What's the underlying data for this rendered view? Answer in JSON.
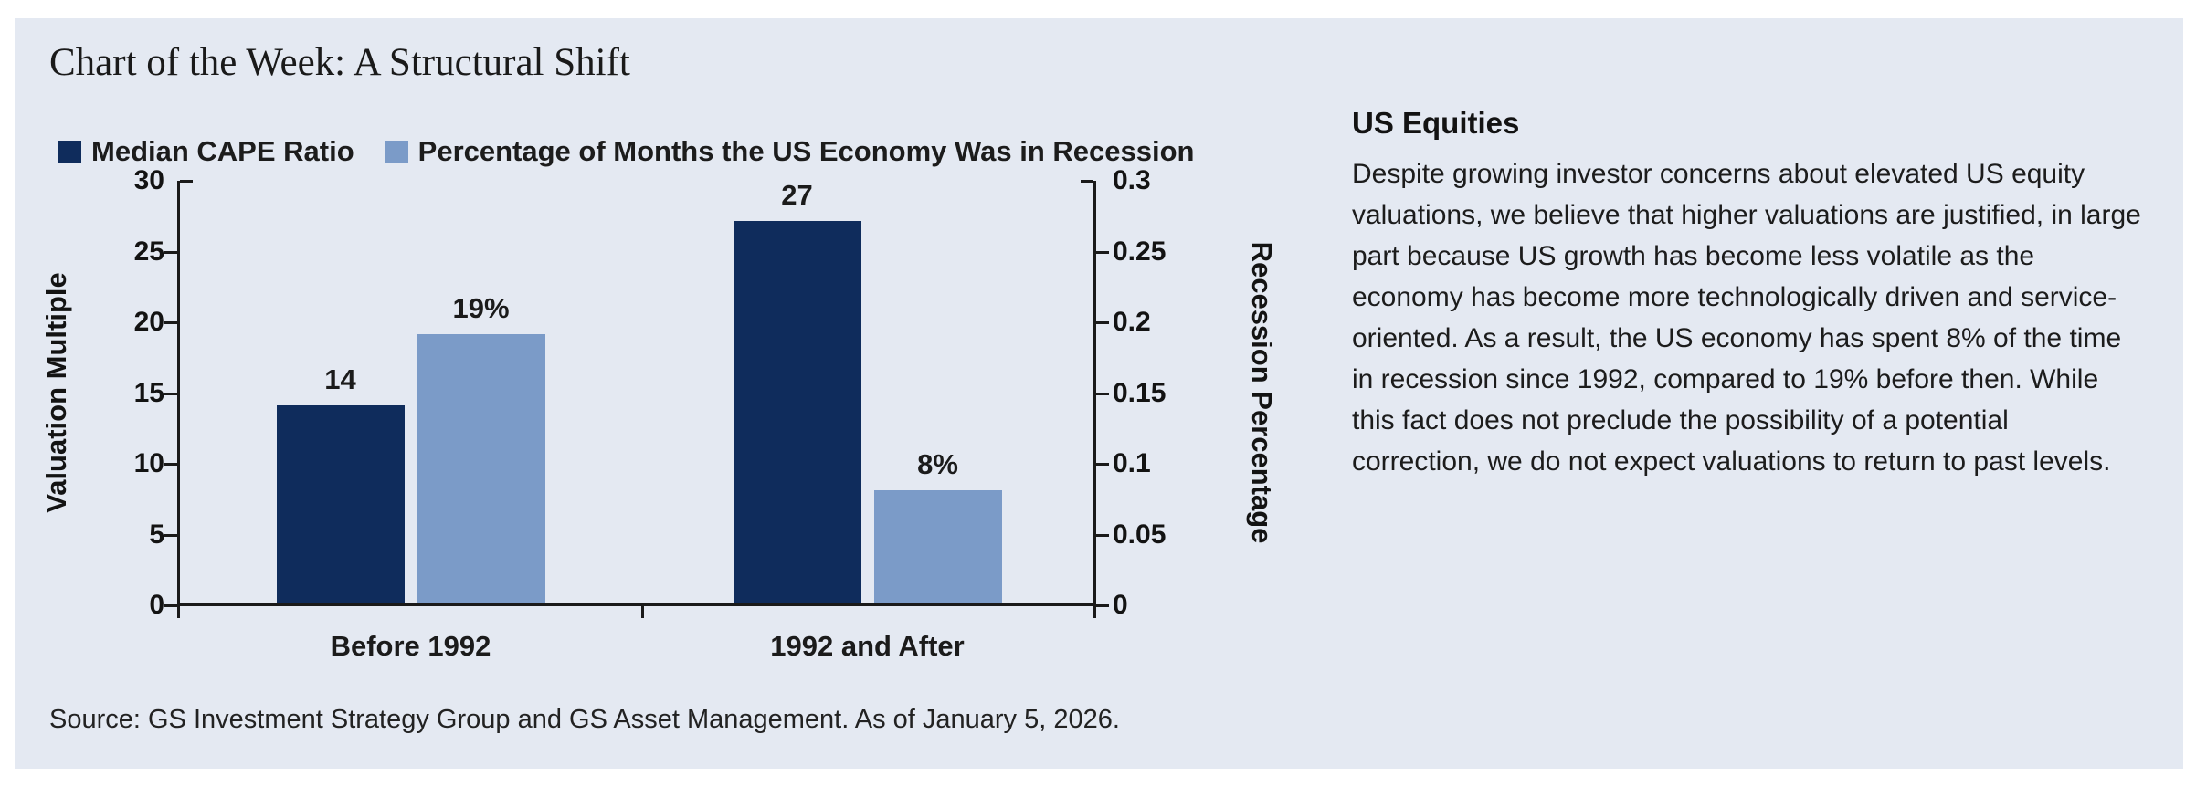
{
  "panel": {
    "title": "Chart of the Week: A Structural Shift",
    "source": "Source: GS Investment Strategy Group and GS Asset Management. As of January 5, 2026."
  },
  "chart_data": {
    "type": "bar",
    "title": "Chart of the Week: A Structural Shift",
    "categories": [
      "Before 1992",
      "1992 and After"
    ],
    "series": [
      {
        "name": "Median CAPE Ratio",
        "axis": "left",
        "values": [
          14,
          27
        ],
        "labels": [
          "14",
          "27"
        ],
        "color": "#0f2c5c"
      },
      {
        "name": "Percentage of Months the US Economy Was in Recession",
        "axis": "right",
        "values": [
          0.19,
          0.08
        ],
        "labels": [
          "19%",
          "8%"
        ],
        "color": "#7b9bc8"
      }
    ],
    "left_axis": {
      "label": "Valuation Multiple",
      "min": 0,
      "max": 30,
      "ticks": [
        "0",
        "5",
        "10",
        "15",
        "20",
        "25",
        "30"
      ]
    },
    "right_axis": {
      "label": "Recession Percentage",
      "min": 0,
      "max": 0.3,
      "ticks": [
        "0",
        "0.05",
        "0.1",
        "0.15",
        "0.2",
        "0.25",
        "0.3"
      ]
    },
    "legend_position": "top",
    "grid": false,
    "colors": {
      "panel_background": "#e4e9f2",
      "axis": "#1a1a1a",
      "dark_navy": "#0f2c5c",
      "light_blue": "#7b9bc8"
    }
  },
  "commentary": {
    "heading": "US Equities",
    "body": "Despite growing investor concerns about elevated US equity valuations, we believe that higher valuations are justified, in large part because US growth has become less volatile as the economy has become more technologically driven and service-oriented. As a result, the US economy has spent 8% of the time in recession since 1992, compared to 19% before then. While this fact does not preclude the possibility of a potential correction, we do not expect valuations to return to past levels."
  }
}
